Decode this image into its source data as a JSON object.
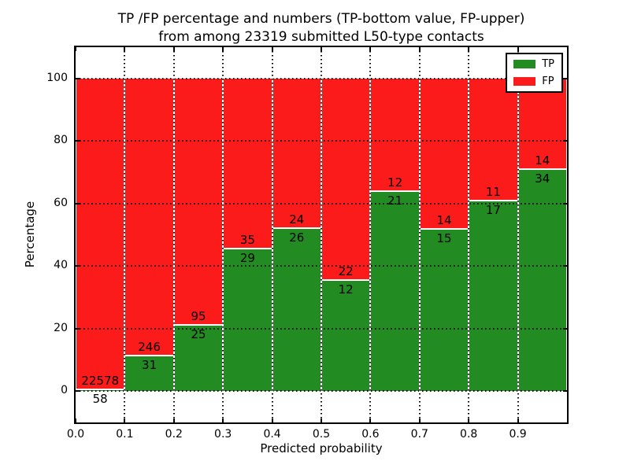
{
  "chart_data": {
    "type": "bar",
    "stacked": true,
    "unit": "percent",
    "title_line1": "TP /FP percentage and numbers (TP-bottom value, FP-upper)",
    "title_line2": "from among 23319 submitted L50-type contacts",
    "xlabel": "Predicted probability",
    "ylabel": "Percentage",
    "total_contacts": 23319,
    "bins": [
      {
        "range": "0.0-0.1",
        "tp": 58,
        "fp": 22578,
        "tp_percent": 0.26
      },
      {
        "range": "0.1-0.2",
        "tp": 31,
        "fp": 246,
        "tp_percent": 11.19
      },
      {
        "range": "0.2-0.3",
        "tp": 25,
        "fp": 95,
        "tp_percent": 20.83
      },
      {
        "range": "0.3-0.4",
        "tp": 29,
        "fp": 35,
        "tp_percent": 45.31
      },
      {
        "range": "0.4-0.5",
        "tp": 26,
        "fp": 24,
        "tp_percent": 52.0
      },
      {
        "range": "0.5-0.6",
        "tp": 12,
        "fp": 22,
        "tp_percent": 35.29
      },
      {
        "range": "0.6-0.7",
        "tp": 21,
        "fp": 12,
        "tp_percent": 63.64
      },
      {
        "range": "0.7-0.8",
        "tp": 15,
        "fp": 14,
        "tp_percent": 51.72
      },
      {
        "range": "0.8-0.9",
        "tp": 17,
        "fp": 11,
        "tp_percent": 60.71
      },
      {
        "range": "0.9-1.0",
        "tp": 34,
        "fp": 14,
        "tp_percent": 70.83
      }
    ],
    "series": [
      {
        "name": "TP",
        "color": "#228b22"
      },
      {
        "name": "FP",
        "color": "#fb1b1b"
      }
    ],
    "x_ticks": [
      "0.0",
      "0.1",
      "0.2",
      "0.3",
      "0.4",
      "0.5",
      "0.6",
      "0.7",
      "0.8",
      "0.9"
    ],
    "y_ticks": [
      "0",
      "20",
      "40",
      "60",
      "80",
      "100"
    ],
    "xlim": [
      0.0,
      1.0
    ],
    "ylim": [
      -10,
      110
    ],
    "grid": true,
    "legend_position": "upper right",
    "edge_color": "#ffffff"
  }
}
